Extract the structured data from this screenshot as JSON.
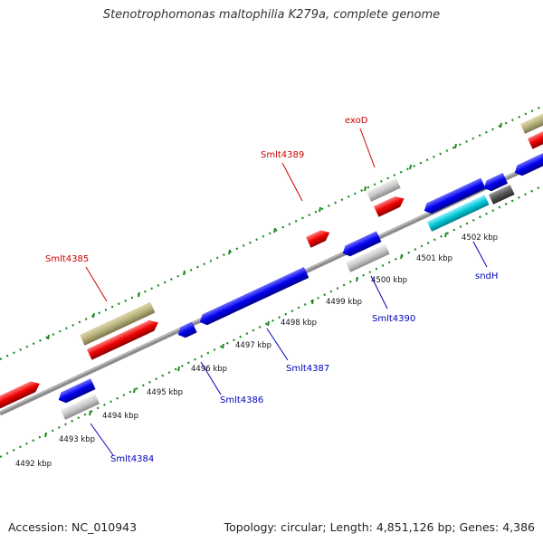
{
  "title": "Stenotrophomonas maltophilia K279a, complete genome",
  "footer": {
    "accession": "Accession: NC_010943",
    "summary": "Topology: circular; Length: 4,851,126 bp; Genes: 4,386"
  },
  "colors": {
    "backbone": "#8c8c8c",
    "tick": "#1c8a1c",
    "forward_label": "#cc0000",
    "reverse_label": "#0000bb",
    "cds": "#0000ee",
    "cds_red": "#ee0000",
    "khaki": "#b8b07a",
    "pseudo": "#c8c8c8",
    "cyan": "#00c8d8",
    "dark": "#555555"
  },
  "scale_labels": [
    "4492 kbp",
    "4493 kbp",
    "4494 kbp",
    "4495 kbp",
    "4496 kbp",
    "4497 kbp",
    "4498 kbp",
    "4499 kbp",
    "4500 kbp",
    "4501 kbp",
    "4502 kbp"
  ],
  "gene_labels": {
    "forward": [
      "Smlt4385",
      "Smlt4389",
      "exoD"
    ],
    "reverse": [
      "Smlt4384",
      "Smlt4386",
      "Smlt4387",
      "Smlt4390",
      "sndH"
    ]
  }
}
